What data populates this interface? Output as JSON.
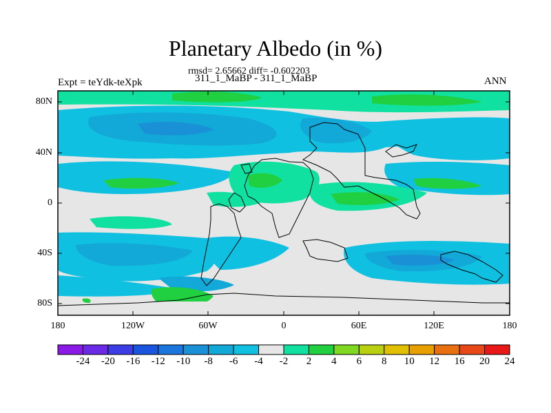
{
  "title": "Planetary Albedo (in %)",
  "stats": "rmsd= 2.65662 diff= -0.602203",
  "subtitle": "311_1_MaBP - 311_1_MaBP",
  "left_label": "Expt = teYdk-teXpk",
  "right_label": "ANN",
  "lat_labels": [
    "80N",
    "40N",
    "0",
    "40S",
    "80S"
  ],
  "lon_labels": [
    "180",
    "120W",
    "60W",
    "0",
    "60E",
    "120E",
    "180"
  ],
  "colorbar": {
    "labels": [
      "-24",
      "-20",
      "-16",
      "-12",
      "-10",
      "-8",
      "-6",
      "-4",
      "-2",
      "2",
      "4",
      "6",
      "8",
      "10",
      "12",
      "16",
      "20",
      "24"
    ],
    "colors": [
      "#8c1ae6",
      "#6a2ae6",
      "#3d3de6",
      "#1a55e0",
      "#1a75dc",
      "#1a90d6",
      "#12a8d8",
      "#10c0e0",
      "#e6e6e6",
      "#10e0a0",
      "#20d040",
      "#80d820",
      "#b8d010",
      "#e0c000",
      "#e8a000",
      "#e87010",
      "#e84818",
      "#e81818"
    ]
  }
}
